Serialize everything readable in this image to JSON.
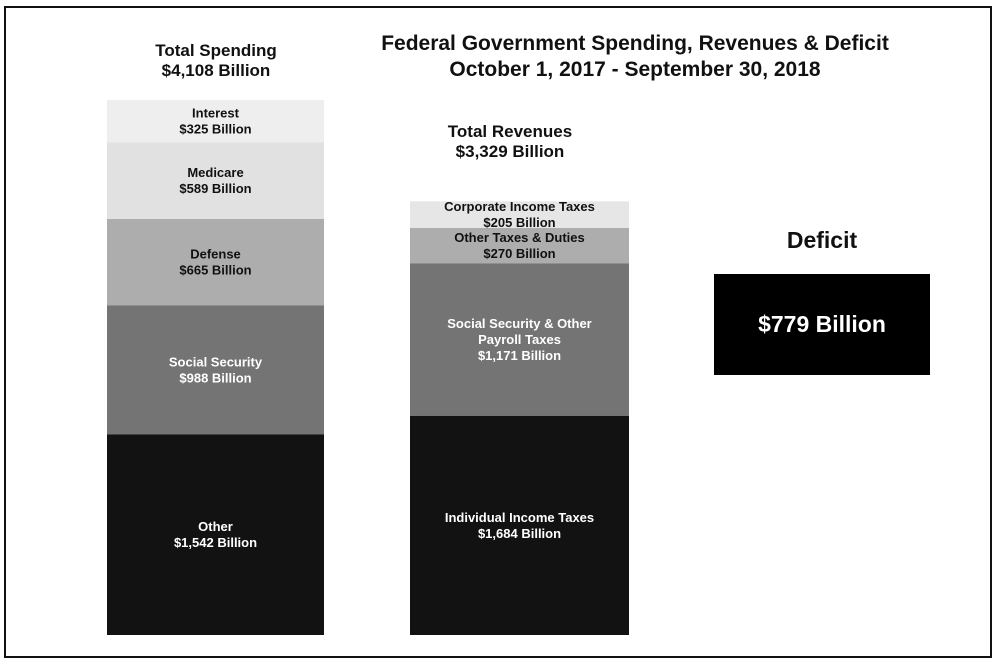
{
  "chart_data": {
    "type": "bar",
    "title_lines": [
      "Federal Government Spending, Revenues & Deficit",
      "October 1, 2017 - September 30, 2018"
    ],
    "units": "Billion",
    "columns": [
      {
        "title_lines": [
          "Total Spending",
          "$4,108 Billion"
        ],
        "total": 4108,
        "segments": [
          {
            "name": [
              "Other"
            ],
            "value": 1542,
            "value_label": "$1,542 Billion",
            "color": "#121212",
            "text_color": "#ffffff"
          },
          {
            "name": [
              "Social Security"
            ],
            "value": 988,
            "value_label": "$988 Billion",
            "color": "#747474",
            "text_color": "#ffffff"
          },
          {
            "name": [
              "Defense"
            ],
            "value": 665,
            "value_label": "$665 Billion",
            "color": "#adadad",
            "text_color": "#111111"
          },
          {
            "name": [
              "Medicare"
            ],
            "value": 589,
            "value_label": "$589 Billion",
            "color": "#e1e1e1",
            "text_color": "#111111"
          },
          {
            "name": [
              "Interest"
            ],
            "value": 325,
            "value_label": "$325 Billion",
            "color": "#eeeeee",
            "text_color": "#111111"
          }
        ]
      },
      {
        "title_lines": [
          "Total Revenues",
          "$3,329 Billion"
        ],
        "total": 3329,
        "segments": [
          {
            "name": [
              "Individual Income Taxes"
            ],
            "value": 1684,
            "value_label": "$1,684 Billion",
            "color": "#121212",
            "text_color": "#ffffff"
          },
          {
            "name": [
              "Social Security & Other",
              "Payroll Taxes"
            ],
            "value": 1171,
            "value_label": "$1,171 Billion",
            "color": "#747474",
            "text_color": "#ffffff"
          },
          {
            "name": [
              "Other Taxes & Duties"
            ],
            "value": 270,
            "value_label": "$270 Billion",
            "color": "#adadad",
            "text_color": "#111111"
          },
          {
            "name": [
              "Corporate Income Taxes"
            ],
            "value": 205,
            "value_label": "$205 Billion",
            "color": "#e6e6e6",
            "text_color": "#111111"
          }
        ]
      }
    ],
    "deficit": {
      "title": "Deficit",
      "value": 779,
      "value_label": "$779 Billion",
      "color": "#000000",
      "text_color": "#ffffff"
    }
  }
}
